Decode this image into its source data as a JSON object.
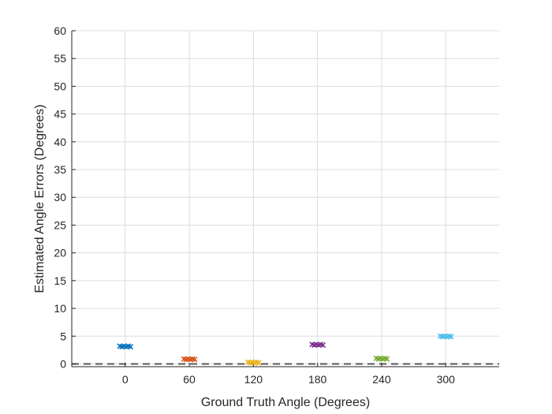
{
  "chart_data": {
    "type": "scatter",
    "title": "",
    "xlabel": "Ground Truth Angle (Degrees)",
    "ylabel": "Estimated Angle Errors (Degrees)",
    "xlim": [
      -50,
      350
    ],
    "ylim": [
      -0.5,
      60
    ],
    "x_ticks": [
      0,
      60,
      120,
      180,
      240,
      300
    ],
    "x_tick_labels": [
      "0",
      "60",
      "120",
      "180",
      "240",
      "300"
    ],
    "y_ticks": [
      0,
      5,
      10,
      15,
      20,
      25,
      30,
      35,
      40,
      45,
      50,
      55,
      60
    ],
    "y_tick_labels": [
      "0",
      "5",
      "10",
      "15",
      "20",
      "25",
      "30",
      "35",
      "40",
      "45",
      "50",
      "55",
      "60"
    ],
    "grid": true,
    "reference_line": {
      "y": 0,
      "style": "dashed",
      "color": "#595959"
    },
    "marker": "x",
    "series": [
      {
        "x": [
          -5,
          -3,
          -1,
          1,
          3,
          5
        ],
        "y": [
          3.2,
          3.1,
          3.2,
          3.1,
          3.2,
          3.1
        ],
        "color": "#0072BD"
      },
      {
        "x": [
          55,
          57,
          59,
          61,
          63,
          65
        ],
        "y": [
          0.9,
          0.8,
          0.9,
          0.8,
          0.9,
          0.8
        ],
        "color": "#D95319"
      },
      {
        "x": [
          115,
          117,
          119,
          121,
          123,
          125
        ],
        "y": [
          0.3,
          0.2,
          0.3,
          0.2,
          0.3,
          0.2
        ],
        "color": "#EDB120"
      },
      {
        "x": [
          175,
          177,
          179,
          181,
          183,
          185
        ],
        "y": [
          3.5,
          3.4,
          3.5,
          3.4,
          3.5,
          3.4
        ],
        "color": "#7E2F8E"
      },
      {
        "x": [
          235,
          237,
          239,
          241,
          243,
          245
        ],
        "y": [
          1.0,
          0.9,
          1.0,
          0.9,
          1.0,
          0.9
        ],
        "color": "#77AC30"
      },
      {
        "x": [
          295,
          297,
          299,
          301,
          303,
          305
        ],
        "y": [
          5.0,
          4.9,
          5.0,
          4.9,
          5.0,
          4.9
        ],
        "color": "#4DBEEE"
      }
    ]
  }
}
